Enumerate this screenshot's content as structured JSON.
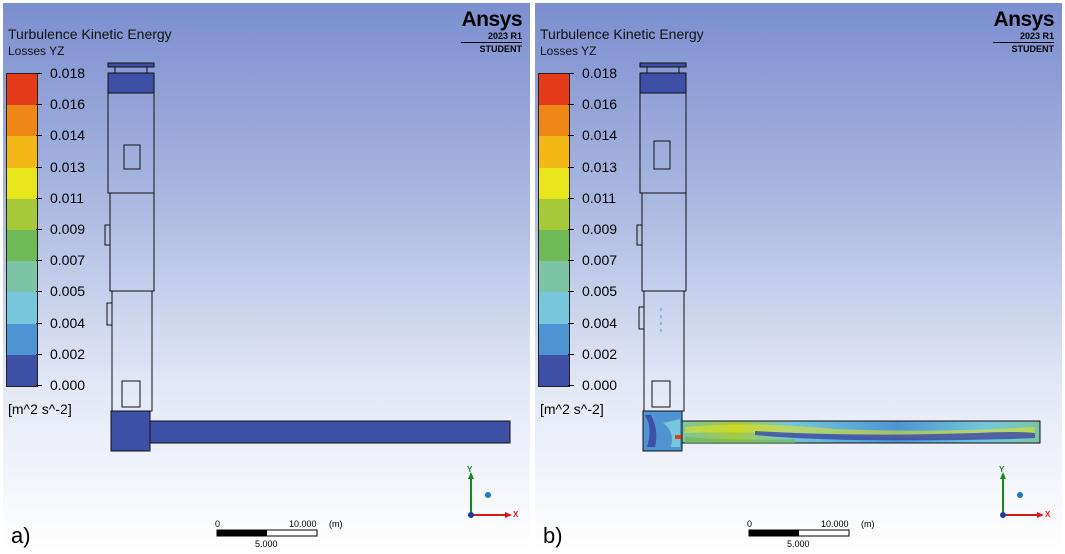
{
  "colors": {
    "legend_bands": [
      "#3e4fa6",
      "#4e94d3",
      "#76c6dc",
      "#7cc4a4",
      "#6fb958",
      "#a6c93c",
      "#e8e51a",
      "#f3b716",
      "#ef8716",
      "#e33a1a"
    ],
    "domain_blue": "#3e4fa6",
    "x_axis": "#d81818",
    "y_axis": "#178a17",
    "z_axis": "#1878c8"
  },
  "panels": [
    {
      "id": "a",
      "title": "Turbulence Kinetic Energy",
      "subtitle": "Losses YZ",
      "logo": {
        "name": "Ansys",
        "version": "2023 R1",
        "edition": "STUDENT"
      },
      "legend": {
        "ticks": [
          "0.018",
          "0.016",
          "0.014",
          "0.013",
          "0.011",
          "0.009",
          "0.007",
          "0.005",
          "0.004",
          "0.002",
          "0.000"
        ],
        "units": "[m^2 s^-2]"
      },
      "scale": {
        "start": "0",
        "end": "10.000",
        "unit": "(m)",
        "mid": "5.000"
      },
      "axes": {
        "x": "X",
        "y": "Y"
      },
      "label": "a)"
    },
    {
      "id": "b",
      "title": "Turbulence Kinetic Energy",
      "subtitle": "Losses YZ",
      "logo": {
        "name": "Ansys",
        "version": "2023 R1",
        "edition": "STUDENT"
      },
      "legend": {
        "ticks": [
          "0.018",
          "0.016",
          "0.014",
          "0.013",
          "0.011",
          "0.009",
          "0.007",
          "0.005",
          "0.004",
          "0.002",
          "0.000"
        ],
        "units": "[m^2 s^-2]"
      },
      "scale": {
        "start": "0",
        "end": "10.000",
        "unit": "(m)",
        "mid": "5.000"
      },
      "axes": {
        "x": "X",
        "y": "Y"
      },
      "label": "b)"
    }
  ]
}
